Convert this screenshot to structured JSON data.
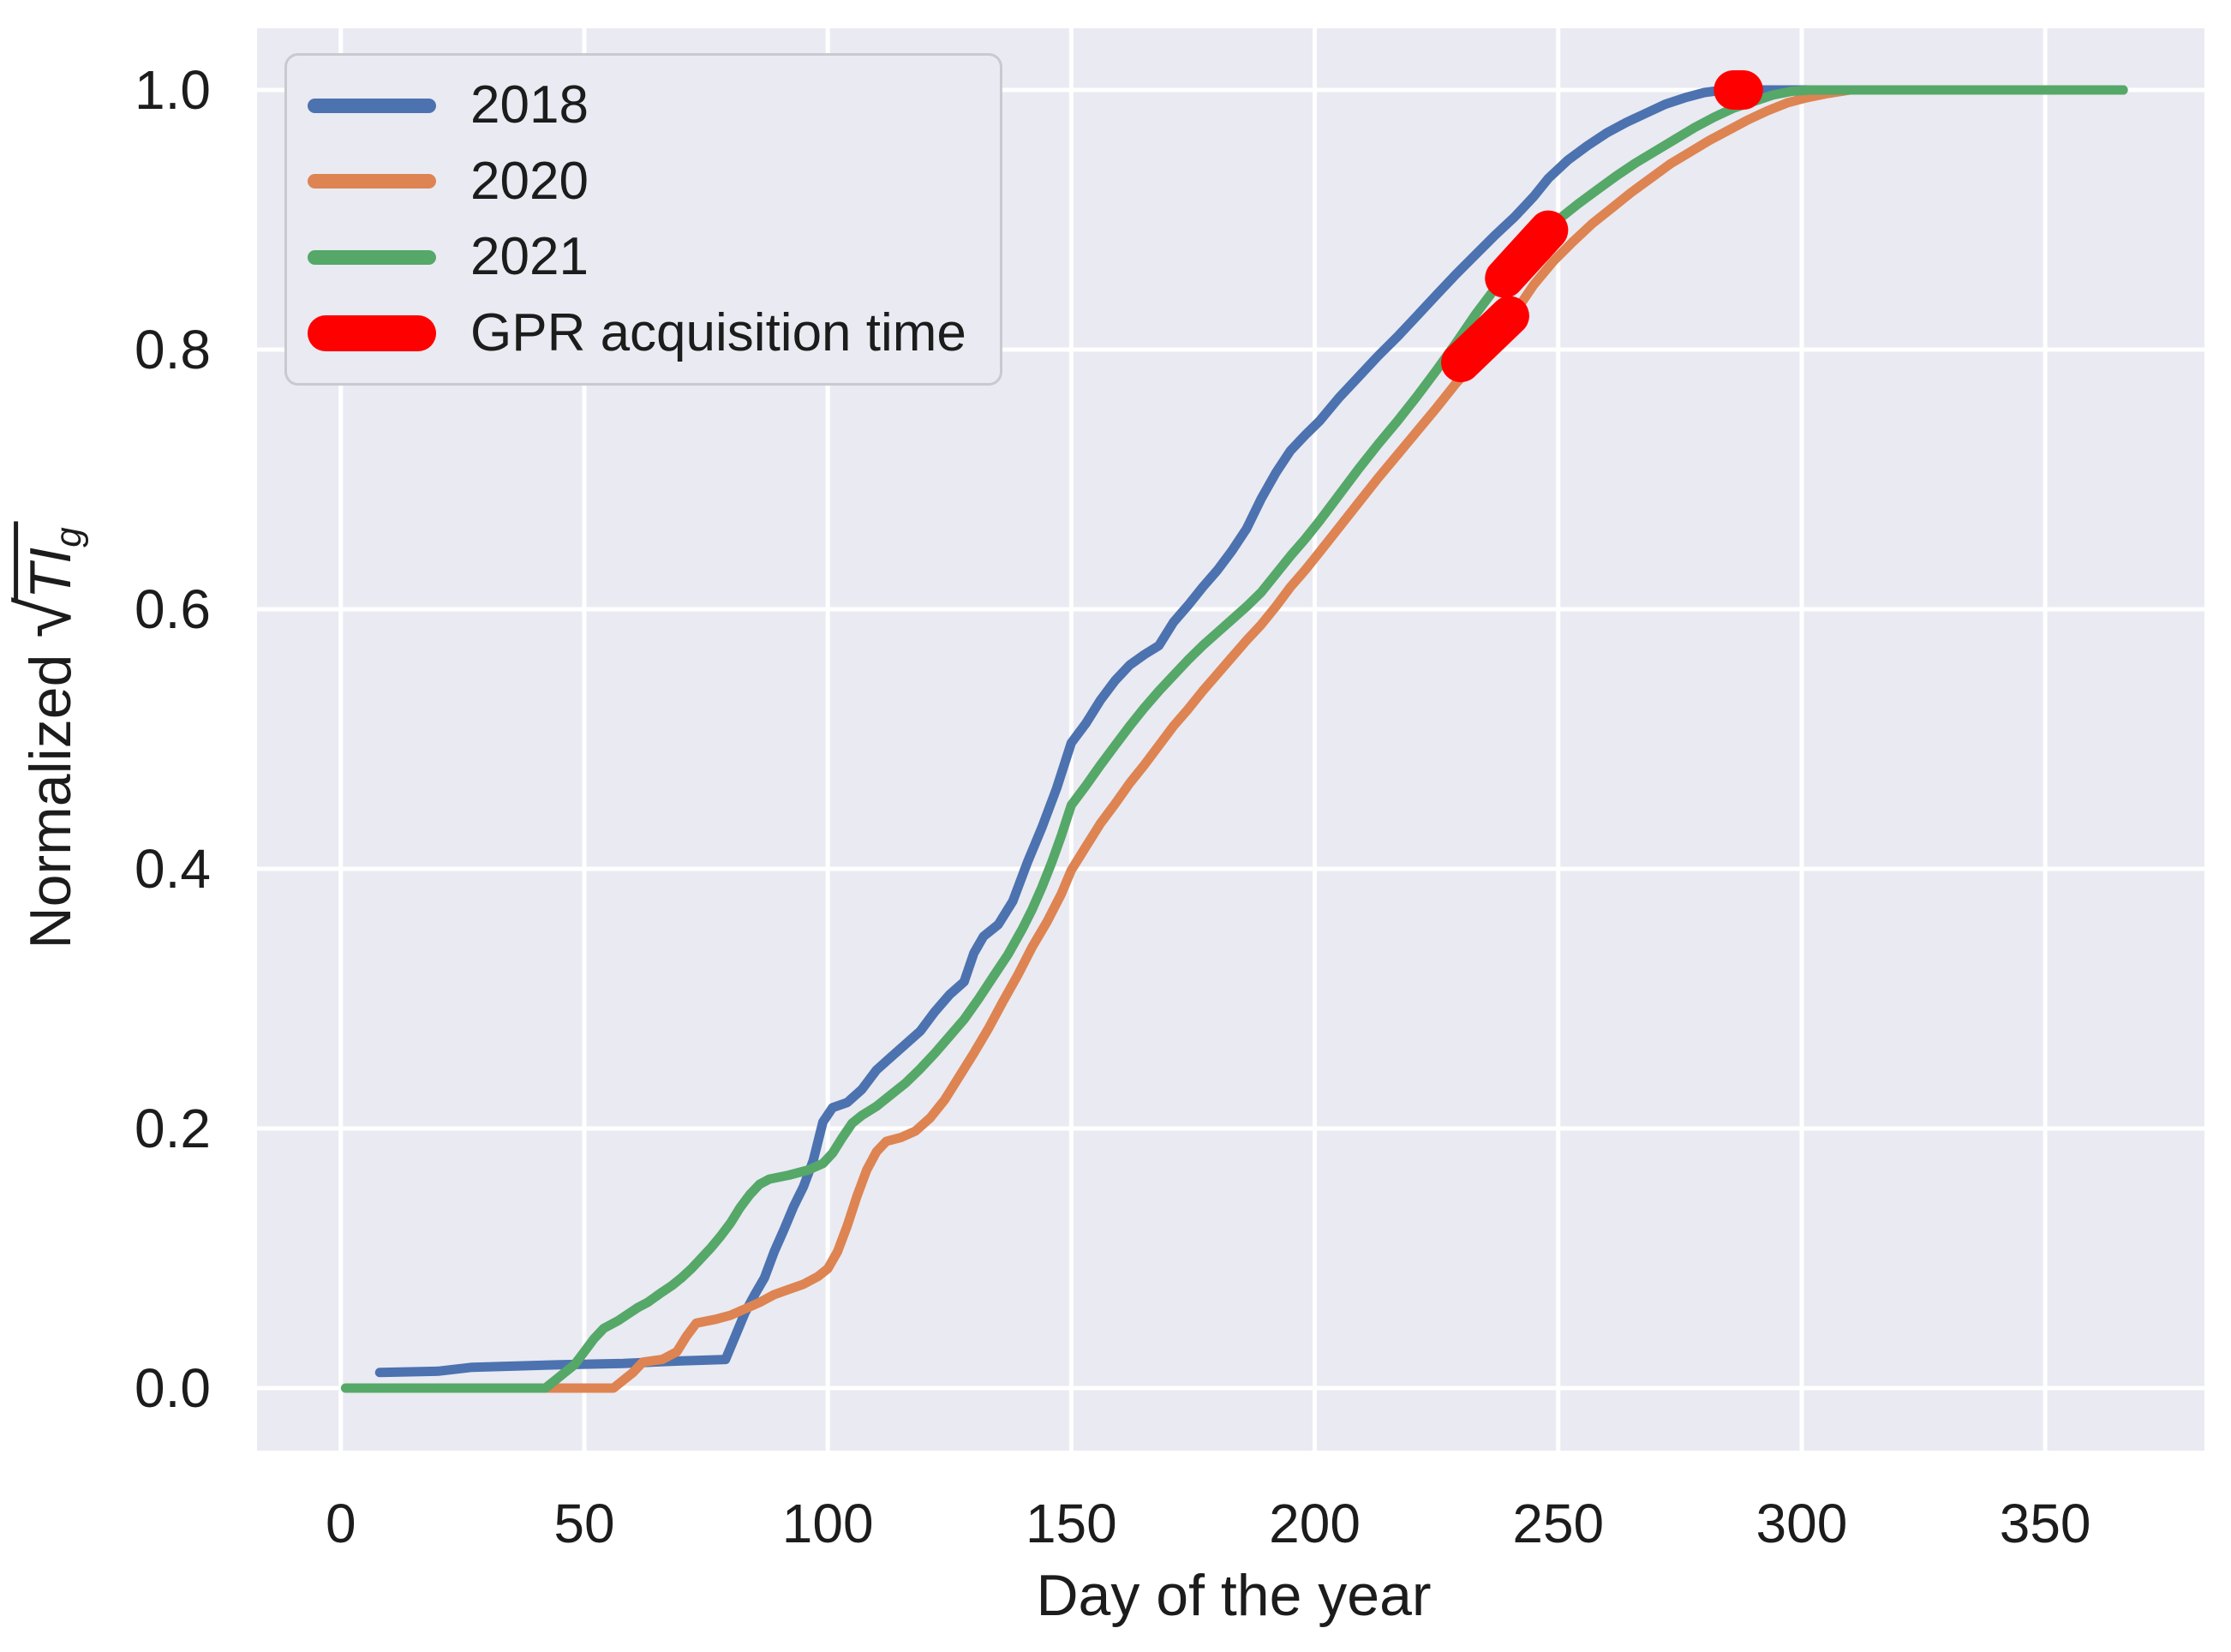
{
  "chart_data": {
    "type": "line",
    "title": "",
    "xlabel": "Day of the year",
    "ylabel_prefix": "Normalized ",
    "ylabel_radicand": "TI",
    "ylabel_subscript": "g",
    "xlim": [
      -17.2,
      382.7
    ],
    "ylim": [
      -0.0482,
      1.0475
    ],
    "xticks": [
      0,
      50,
      100,
      150,
      200,
      250,
      300,
      350
    ],
    "xtick_labels": [
      "0",
      "50",
      "100",
      "150",
      "200",
      "250",
      "300",
      "350"
    ],
    "yticks": [
      0.0,
      0.2,
      0.4,
      0.6,
      0.8,
      1.0
    ],
    "ytick_labels": [
      "0.0",
      "0.2",
      "0.4",
      "0.6",
      "0.8",
      "1.0"
    ],
    "grid": true,
    "background": "#eaeaf2",
    "gridline_color": "#ffffff",
    "legend_position": "upper left",
    "series": [
      {
        "name": "2018",
        "color": "#4c72b0",
        "linewidth": 11,
        "points": [
          [
            8,
            0.012
          ],
          [
            20,
            0.013
          ],
          [
            27,
            0.016
          ],
          [
            45,
            0.018
          ],
          [
            58,
            0.019
          ],
          [
            70,
            0.021
          ],
          [
            79,
            0.022
          ],
          [
            81,
            0.04
          ],
          [
            83,
            0.058
          ],
          [
            85,
            0.072
          ],
          [
            87,
            0.085
          ],
          [
            89,
            0.105
          ],
          [
            91,
            0.122
          ],
          [
            93,
            0.14
          ],
          [
            95,
            0.155
          ],
          [
            97,
            0.175
          ],
          [
            99,
            0.205
          ],
          [
            101,
            0.216
          ],
          [
            104,
            0.22
          ],
          [
            107,
            0.23
          ],
          [
            110,
            0.245
          ],
          [
            113,
            0.255
          ],
          [
            116,
            0.265
          ],
          [
            119,
            0.275
          ],
          [
            122,
            0.29
          ],
          [
            125,
            0.303
          ],
          [
            128,
            0.313
          ],
          [
            130,
            0.335
          ],
          [
            132,
            0.348
          ],
          [
            135,
            0.357
          ],
          [
            138,
            0.375
          ],
          [
            141,
            0.405
          ],
          [
            144,
            0.432
          ],
          [
            147,
            0.462
          ],
          [
            150,
            0.497
          ],
          [
            153,
            0.512
          ],
          [
            156,
            0.53
          ],
          [
            159,
            0.545
          ],
          [
            162,
            0.557
          ],
          [
            165,
            0.565
          ],
          [
            168,
            0.572
          ],
          [
            171,
            0.59
          ],
          [
            174,
            0.603
          ],
          [
            177,
            0.617
          ],
          [
            180,
            0.63
          ],
          [
            183,
            0.645
          ],
          [
            186,
            0.662
          ],
          [
            189,
            0.685
          ],
          [
            192,
            0.705
          ],
          [
            195,
            0.722
          ],
          [
            198,
            0.734
          ],
          [
            201,
            0.745
          ],
          [
            205,
            0.763
          ],
          [
            209,
            0.779
          ],
          [
            213,
            0.795
          ],
          [
            217,
            0.81
          ],
          [
            221,
            0.826
          ],
          [
            225,
            0.842
          ],
          [
            229,
            0.858
          ],
          [
            233,
            0.873
          ],
          [
            237,
            0.888
          ],
          [
            241,
            0.902
          ],
          [
            245,
            0.918
          ],
          [
            248,
            0.932
          ],
          [
            252,
            0.946
          ],
          [
            256,
            0.957
          ],
          [
            260,
            0.967
          ],
          [
            264,
            0.975
          ],
          [
            268,
            0.982
          ],
          [
            272,
            0.989
          ],
          [
            276,
            0.994
          ],
          [
            280,
            0.998
          ],
          [
            284,
            1.0
          ],
          [
            366,
            1.0
          ]
        ]
      },
      {
        "name": "2020",
        "color": "#dd8452",
        "linewidth": 11,
        "points": [
          [
            42,
            0.0
          ],
          [
            56,
            0.0
          ],
          [
            58,
            0.006
          ],
          [
            60,
            0.012
          ],
          [
            62,
            0.02
          ],
          [
            66,
            0.022
          ],
          [
            69,
            0.028
          ],
          [
            71,
            0.04
          ],
          [
            73,
            0.05
          ],
          [
            77,
            0.053
          ],
          [
            80,
            0.056
          ],
          [
            83,
            0.061
          ],
          [
            86,
            0.066
          ],
          [
            89,
            0.072
          ],
          [
            92,
            0.076
          ],
          [
            95,
            0.08
          ],
          [
            98,
            0.086
          ],
          [
            100,
            0.092
          ],
          [
            102,
            0.105
          ],
          [
            104,
            0.125
          ],
          [
            106,
            0.148
          ],
          [
            108,
            0.168
          ],
          [
            110,
            0.182
          ],
          [
            112,
            0.19
          ],
          [
            115,
            0.193
          ],
          [
            118,
            0.198
          ],
          [
            121,
            0.208
          ],
          [
            124,
            0.222
          ],
          [
            127,
            0.24
          ],
          [
            130,
            0.258
          ],
          [
            133,
            0.277
          ],
          [
            136,
            0.298
          ],
          [
            139,
            0.318
          ],
          [
            142,
            0.34
          ],
          [
            145,
            0.359
          ],
          [
            148,
            0.381
          ],
          [
            150,
            0.399
          ],
          [
            153,
            0.417
          ],
          [
            156,
            0.435
          ],
          [
            159,
            0.45
          ],
          [
            162,
            0.466
          ],
          [
            165,
            0.48
          ],
          [
            168,
            0.495
          ],
          [
            171,
            0.51
          ],
          [
            174,
            0.523
          ],
          [
            177,
            0.537
          ],
          [
            180,
            0.55
          ],
          [
            183,
            0.563
          ],
          [
            186,
            0.576
          ],
          [
            189,
            0.588
          ],
          [
            192,
            0.602
          ],
          [
            195,
            0.617
          ],
          [
            198,
            0.63
          ],
          [
            201,
            0.644
          ],
          [
            205,
            0.663
          ],
          [
            209,
            0.682
          ],
          [
            213,
            0.701
          ],
          [
            217,
            0.719
          ],
          [
            221,
            0.737
          ],
          [
            225,
            0.755
          ],
          [
            229,
            0.774
          ],
          [
            233,
            0.79
          ],
          [
            237,
            0.808
          ],
          [
            241,
            0.828
          ],
          [
            245,
            0.85
          ],
          [
            249,
            0.868
          ],
          [
            253,
            0.883
          ],
          [
            257,
            0.897
          ],
          [
            261,
            0.909
          ],
          [
            265,
            0.921
          ],
          [
            269,
            0.932
          ],
          [
            273,
            0.943
          ],
          [
            277,
            0.952
          ],
          [
            281,
            0.961
          ],
          [
            285,
            0.969
          ],
          [
            289,
            0.977
          ],
          [
            293,
            0.984
          ],
          [
            297,
            0.99
          ],
          [
            301,
            0.994
          ],
          [
            305,
            0.997
          ],
          [
            310,
            1.0
          ],
          [
            366,
            1.0
          ]
        ]
      },
      {
        "name": "2021",
        "color": "#55a868",
        "linewidth": 11,
        "points": [
          [
            1,
            0.0
          ],
          [
            42,
            0.0
          ],
          [
            44,
            0.006
          ],
          [
            46,
            0.012
          ],
          [
            48,
            0.018
          ],
          [
            50,
            0.028
          ],
          [
            52,
            0.038
          ],
          [
            54,
            0.046
          ],
          [
            57,
            0.052
          ],
          [
            59,
            0.057
          ],
          [
            61,
            0.062
          ],
          [
            63,
            0.066
          ],
          [
            66,
            0.074
          ],
          [
            68,
            0.079
          ],
          [
            70,
            0.085
          ],
          [
            72,
            0.092
          ],
          [
            74,
            0.1
          ],
          [
            76,
            0.108
          ],
          [
            78,
            0.117
          ],
          [
            80,
            0.127
          ],
          [
            82,
            0.139
          ],
          [
            84,
            0.149
          ],
          [
            86,
            0.157
          ],
          [
            88,
            0.161
          ],
          [
            92,
            0.164
          ],
          [
            96,
            0.168
          ],
          [
            99,
            0.173
          ],
          [
            101,
            0.181
          ],
          [
            103,
            0.193
          ],
          [
            105,
            0.204
          ],
          [
            107,
            0.21
          ],
          [
            110,
            0.217
          ],
          [
            113,
            0.226
          ],
          [
            116,
            0.235
          ],
          [
            119,
            0.246
          ],
          [
            122,
            0.258
          ],
          [
            125,
            0.271
          ],
          [
            128,
            0.284
          ],
          [
            131,
            0.3
          ],
          [
            134,
            0.317
          ],
          [
            137,
            0.334
          ],
          [
            140,
            0.354
          ],
          [
            142,
            0.369
          ],
          [
            144,
            0.386
          ],
          [
            146,
            0.405
          ],
          [
            148,
            0.426
          ],
          [
            150,
            0.449
          ],
          [
            153,
            0.464
          ],
          [
            156,
            0.48
          ],
          [
            159,
            0.495
          ],
          [
            162,
            0.51
          ],
          [
            165,
            0.524
          ],
          [
            168,
            0.537
          ],
          [
            171,
            0.549
          ],
          [
            174,
            0.561
          ],
          [
            177,
            0.572
          ],
          [
            180,
            0.582
          ],
          [
            183,
            0.592
          ],
          [
            186,
            0.602
          ],
          [
            189,
            0.613
          ],
          [
            192,
            0.627
          ],
          [
            195,
            0.641
          ],
          [
            198,
            0.654
          ],
          [
            201,
            0.668
          ],
          [
            205,
            0.688
          ],
          [
            209,
            0.708
          ],
          [
            213,
            0.727
          ],
          [
            217,
            0.745
          ],
          [
            221,
            0.764
          ],
          [
            225,
            0.784
          ],
          [
            229,
            0.805
          ],
          [
            233,
            0.827
          ],
          [
            237,
            0.847
          ],
          [
            241,
            0.865
          ],
          [
            244,
            0.878
          ],
          [
            247,
            0.889
          ],
          [
            250,
            0.9
          ],
          [
            254,
            0.912
          ],
          [
            258,
            0.923
          ],
          [
            262,
            0.934
          ],
          [
            266,
            0.944
          ],
          [
            270,
            0.953
          ],
          [
            274,
            0.962
          ],
          [
            278,
            0.971
          ],
          [
            282,
            0.979
          ],
          [
            286,
            0.986
          ],
          [
            290,
            0.991
          ],
          [
            294,
            0.996
          ],
          [
            298,
            0.999
          ],
          [
            302,
            1.0
          ],
          [
            366,
            1.0
          ]
        ]
      }
    ],
    "markers": {
      "name": "GPR acquisition time",
      "color": "#ff0000",
      "linewidth": 46,
      "segments": [
        [
          [
            230,
            0.79
          ],
          [
            240,
            0.826
          ]
        ],
        [
          [
            239,
            0.855
          ],
          [
            248,
            0.892
          ]
        ],
        [
          [
            286,
            1.0
          ],
          [
            288,
            1.0
          ]
        ]
      ]
    }
  },
  "legend": {
    "items": [
      {
        "label": "2018",
        "color": "#4c72b0",
        "thick": false
      },
      {
        "label": "2020",
        "color": "#dd8452",
        "thick": false
      },
      {
        "label": "2021",
        "color": "#55a868",
        "thick": false
      },
      {
        "label": "GPR acquisition time",
        "color": "#ff0000",
        "thick": true
      }
    ]
  },
  "text_color": "#1c1c1c"
}
